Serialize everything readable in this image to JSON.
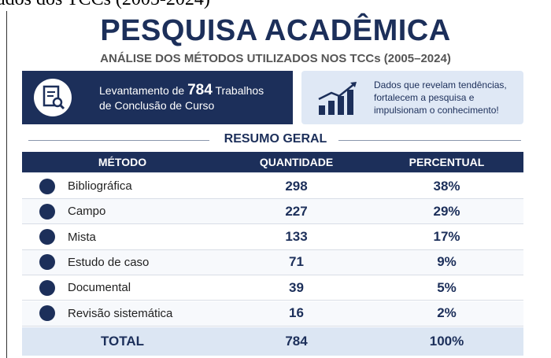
{
  "caption_fragment": "ados dos TCCs (2005-2024)",
  "header": {
    "title": "PESQUISA ACADÊMICA",
    "subtitle": "ANÁLISE DOS MÉTODOS UTILIZADOS NOS TCCs (2005–2024)"
  },
  "banner": {
    "left": {
      "prefix": "Levantamento de",
      "number": "784",
      "suffix": "Trabalhos",
      "line2": "de Conclusão de Curso"
    },
    "right": {
      "lines": [
        "Dados que revelam tendências,",
        "fortalecem a pesquisa e",
        "impulsionam o conhecimento!"
      ]
    }
  },
  "section_title": "RESUMO GERAL",
  "table": {
    "columns": [
      "MÉTODO",
      "QUANTIDADE",
      "PERCENTUAL"
    ],
    "rows": [
      [
        "Bibliográfica",
        "298",
        "38%"
      ],
      [
        "Campo",
        "227",
        "29%"
      ],
      [
        "Mista",
        "133",
        "17%"
      ],
      [
        "Estudo de caso",
        "71",
        "9%"
      ],
      [
        "Documental",
        "39",
        "5%"
      ],
      [
        "Revisão sistemática",
        "16",
        "2%"
      ]
    ],
    "total": [
      "TOTAL",
      "784",
      "100%"
    ]
  }
}
